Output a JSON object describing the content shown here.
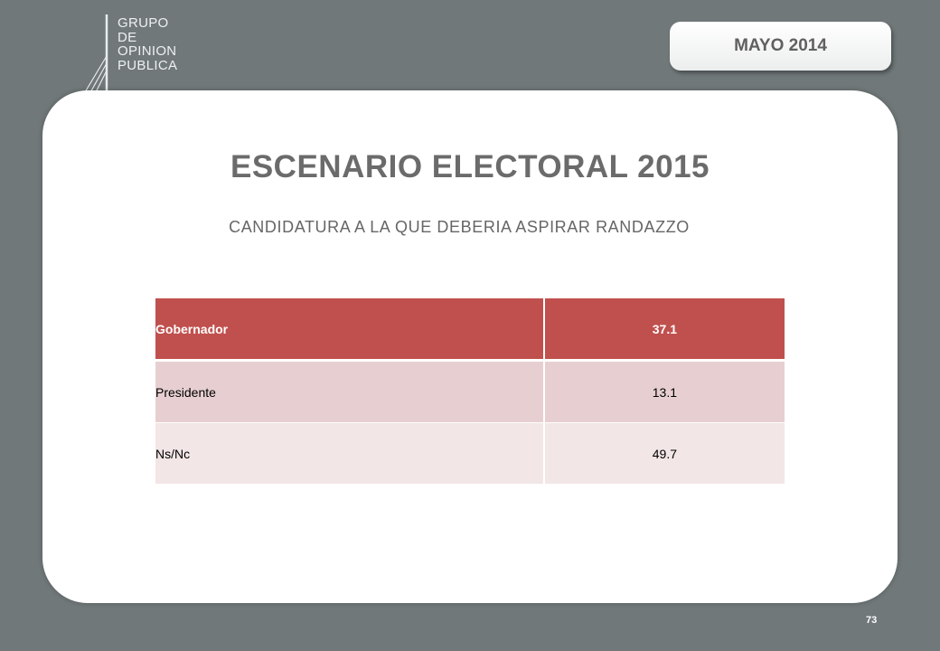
{
  "logo": {
    "lines": [
      "GRUPO",
      "DE",
      "OPINION",
      "PUBLICA"
    ]
  },
  "date_badge": "MAYO 2014",
  "title": "ESCENARIO ELECTORAL 2015",
  "subtitle": "CANDIDATURA A LA QUE DEBERIA ASPIRAR RANDAZZO",
  "table": {
    "rows": [
      {
        "label": "Gobernador",
        "value": "37.1"
      },
      {
        "label": "Presidente",
        "value": "13.1"
      },
      {
        "label": "Ns/Nc",
        "value": "49.7"
      }
    ]
  },
  "page_number": "73",
  "colors": {
    "header_row": "#c0504d",
    "row_odd": "#e7cfd1",
    "row_even": "#f2e6e6",
    "background": "#707879"
  }
}
